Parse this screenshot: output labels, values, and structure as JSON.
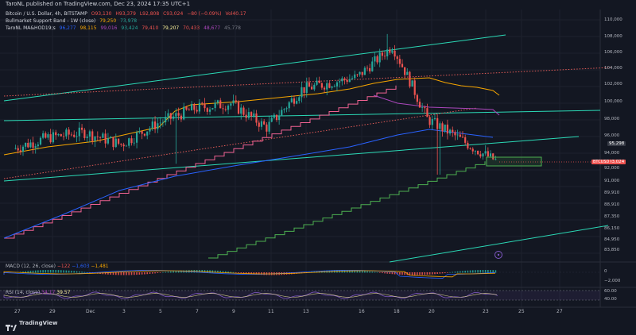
{
  "header": {
    "publish_line": "TaroNL published on TradingView.com, Dec 23, 2024 17:35 UTC+1"
  },
  "legend": {
    "main": {
      "name": "Bitcoin / U.S. Dollar, 4h, BITSTAMP",
      "o": "O93,130",
      "h": "H93,379",
      "l": "L92,808",
      "c": "C93,024",
      "chg": "−80 (−0.09%)",
      "vol": "Vol40.17"
    },
    "bmsb": {
      "name": "Bullmarket Support Band - 1W (close)",
      "v1": "79,250",
      "v2": "73,978"
    },
    "ma": {
      "name": "TaroNL MA&HOD19;s",
      "v1": "96,277",
      "v2": "98,115",
      "v3": "99,016",
      "v4": "93,424",
      "v5": "79,410",
      "v6": "79,207",
      "v7": "70,433",
      "v8": "48,677",
      "v9": "45,778"
    }
  },
  "price_axis": [
    "110,000",
    "108,000",
    "106,000",
    "104,000",
    "102,000",
    "100,000",
    "98,000",
    "96,000",
    "94,000",
    "92,000",
    "91,000",
    "89,910",
    "88,910",
    "87,350",
    "86,150",
    "84,950",
    "83,850"
  ],
  "price_tags": {
    "hl": "95,298",
    "last": "93,024",
    "symbol": "BTCUSD"
  },
  "date_axis": [
    "27",
    "29",
    "Dec",
    "3",
    "5",
    "7",
    "9",
    "11",
    "13",
    "16",
    "18",
    "20",
    "23",
    "25",
    "27"
  ],
  "macd": {
    "title": "MACD (12, 26, close)",
    "v1": "−122",
    "v2": "−1,603",
    "v3": "−1,481",
    "axis0": "0",
    "axis1": "−2,000"
  },
  "rsi": {
    "title": "RSI (14, close)",
    "v1": "34.17",
    "v2": "39.57",
    "axis_hi": "60.00",
    "axis_lo": "40.00"
  },
  "footer": {
    "brand": "TradingView"
  },
  "chart_data": {
    "type": "line",
    "xlabel": "",
    "ylabel": "",
    "x": [
      "27",
      "29",
      "Dec",
      "3",
      "5",
      "7",
      "9",
      "11",
      "13",
      "16",
      "18",
      "20",
      "23"
    ],
    "series": [
      {
        "values": [
          94500,
          95800,
          96400,
          95000,
          97500,
          99200,
          99800,
          97000,
          101400,
          102900,
          106800,
          98000,
          93024
        ]
      }
    ],
    "ylim": [
      83000,
      111000
    ],
    "colors": {
      "up": "#26a69a",
      "down": "#ef5350",
      "channel": "#2bd9b6",
      "ma_blue": "#2962ff",
      "ma_orange": "#f7a600",
      "ma_violet": "#ab47bc",
      "ma_pink": "#f06292",
      "ma_green": "#4caf50",
      "dotted": "#e05a57"
    }
  }
}
